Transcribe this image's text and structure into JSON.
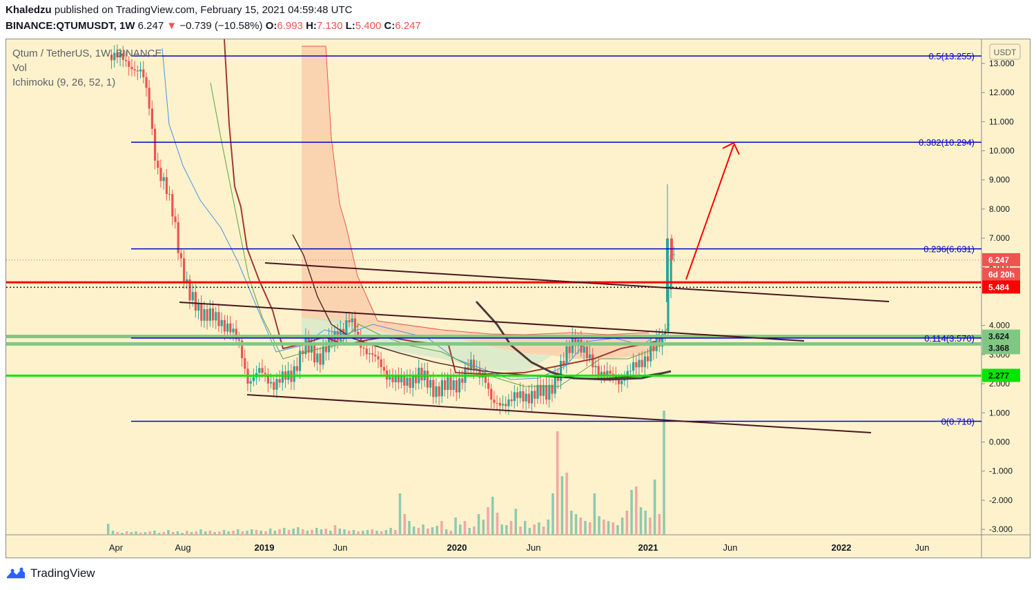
{
  "header": {
    "author": "Khaledzu",
    "published_text": "published on TradingView.com, February 15, 2021 04:59:48 UTC",
    "symbol": "BINANCE:QTUMUSDT, 1W",
    "last": "6.247",
    "change": "−0.739 (−10.58%)",
    "o_label": "O:",
    "o": "6.993",
    "h_label": "H:",
    "h": "7.130",
    "l_label": "L:",
    "l": "5.400",
    "c_label": "C:",
    "c": "6.247"
  },
  "legend": {
    "title": "Qtum / TetherUS, 1W, BINANCE",
    "vol": "Vol",
    "ichimoku": "Ichimoku (9, 26, 52, 1)"
  },
  "brand": {
    "name": "TradingView"
  },
  "chart_data": {
    "type": "candlestick",
    "currency_label": "USDT",
    "background": "#fdf2cc",
    "ylim": [
      -3.2,
      13.9
    ],
    "y_ticks": [
      "13.000",
      "12.000",
      "11.000",
      "10.000",
      "9.000",
      "8.000",
      "7.000",
      "6.000",
      "4.000",
      "3.000",
      "2.000",
      "1.000",
      "0.000",
      "-1.000",
      "-2.000",
      "-3.000"
    ],
    "x_ticks": [
      "Apr",
      "Aug",
      "2019",
      "Jun",
      "2020",
      "Jun",
      "2021",
      "Jun",
      "2022",
      "Jun"
    ],
    "price_badges": [
      {
        "text": "6.247",
        "color": "#ef5350"
      },
      {
        "text": "6d 20h",
        "color": "#ef5350"
      },
      {
        "text": "5.484",
        "color": "#ff0000"
      },
      {
        "text": "3.624",
        "color": "#81c784"
      },
      {
        "text": "3.368",
        "color": "#81c784"
      },
      {
        "text": "2.277",
        "color": "#00e600"
      }
    ],
    "fib_levels": [
      {
        "label": "0.5(13.255)",
        "value": 13.255
      },
      {
        "label": "0.382(10.294)",
        "value": 10.294
      },
      {
        "label": "0.236(6.631)",
        "value": 6.631
      },
      {
        "label": "0.114(3.570)",
        "value": 3.57
      },
      {
        "label": "0(0.710)",
        "value": 0.71
      }
    ],
    "horizontal_levels": [
      {
        "value": 5.484,
        "color": "#ff0000"
      },
      {
        "value": 3.624,
        "color": "#81c784"
      },
      {
        "value": 3.368,
        "color": "#81c784"
      },
      {
        "value": 2.277,
        "color": "#00e600"
      }
    ],
    "colors": {
      "up": "#26a69a",
      "down": "#ef5350",
      "fib": "#0000cc",
      "trend": "#4a1420",
      "arrow": "#ff0000"
    }
  }
}
